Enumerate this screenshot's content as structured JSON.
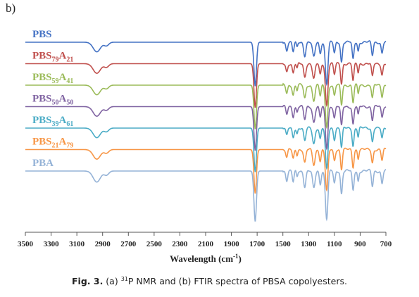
{
  "panel_label": "b)",
  "caption": {
    "fig": "Fig. 3.",
    "rest_pre": " (a) ",
    "sup": "31",
    "rest_post": "P NMR and (b) FTIR spectra of PBSA copolyesters."
  },
  "chart_data": {
    "type": "line",
    "xlabel_main": "Wavelength (cm",
    "xlabel_sup": "-1",
    "xlabel_end": ")",
    "xlim": [
      3500,
      700
    ],
    "x_reversed": true,
    "x_ticks": [
      3500,
      3300,
      3100,
      2900,
      2700,
      2500,
      2300,
      2100,
      1900,
      1700,
      1500,
      1300,
      1100,
      900,
      700
    ],
    "grid": false,
    "legend_placement": "inline-left",
    "series": [
      {
        "name": "PBS",
        "main": "PBS",
        "sub1": "",
        "mid": "",
        "sub2": "",
        "color": "#4472C4",
        "offset": 0
      },
      {
        "name": "PBS79A21",
        "main": "PBS",
        "sub1": "79",
        "mid": "A",
        "sub2": "21",
        "color": "#C0504D",
        "offset": 1
      },
      {
        "name": "PBS59A41",
        "main": "PBS",
        "sub1": "59",
        "mid": "A",
        "sub2": "41",
        "color": "#9BBB59",
        "offset": 2
      },
      {
        "name": "PBS50A50",
        "main": "PBS",
        "sub1": "50",
        "mid": "A",
        "sub2": "50",
        "color": "#8064A2",
        "offset": 3
      },
      {
        "name": "PBS39A61",
        "main": "PBS",
        "sub1": "39",
        "mid": "A",
        "sub2": "61",
        "color": "#4BACC6",
        "offset": 4
      },
      {
        "name": "PBS21A79",
        "main": "PBS",
        "sub1": "21",
        "mid": "A",
        "sub2": "79",
        "color": "#F79646",
        "offset": 5
      },
      {
        "name": "PBA",
        "main": "PBA",
        "sub1": "",
        "mid": "",
        "sub2": "",
        "color": "#95B3D7",
        "offset": 6
      }
    ],
    "peaks_cm1": [
      {
        "x": 2945,
        "depth": 0.22,
        "w": 40
      },
      {
        "x": 2870,
        "depth": 0.08,
        "w": 25
      },
      {
        "x": 1715,
        "depth": 1.0,
        "w": 14
      },
      {
        "x": 1470,
        "depth": 0.18,
        "w": 10
      },
      {
        "x": 1420,
        "depth": 0.22,
        "w": 10
      },
      {
        "x": 1390,
        "depth": 0.12,
        "w": 8
      },
      {
        "x": 1330,
        "depth": 0.3,
        "w": 12
      },
      {
        "x": 1260,
        "depth": 0.35,
        "w": 14
      },
      {
        "x": 1210,
        "depth": 0.25,
        "w": 10
      },
      {
        "x": 1160,
        "depth": 0.95,
        "w": 14
      },
      {
        "x": 1100,
        "depth": 0.25,
        "w": 10
      },
      {
        "x": 1045,
        "depth": 0.45,
        "w": 10
      },
      {
        "x": 955,
        "depth": 0.4,
        "w": 10
      },
      {
        "x": 915,
        "depth": 0.2,
        "w": 8
      },
      {
        "x": 805,
        "depth": 0.3,
        "w": 10
      },
      {
        "x": 730,
        "depth": 0.25,
        "w": 10
      }
    ]
  }
}
